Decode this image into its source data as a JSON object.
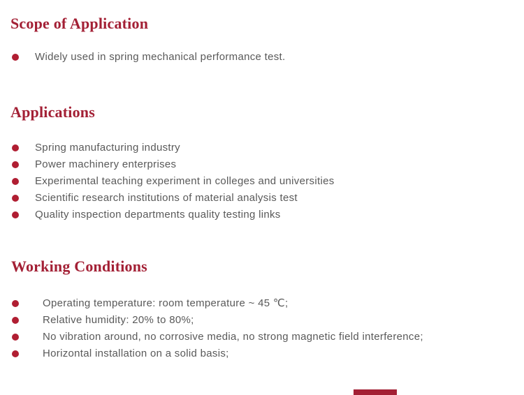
{
  "page": {
    "background_color": "#ffffff",
    "heading_color": "#A32035",
    "bullet_color": "#B01E32",
    "body_text_color": "#595959"
  },
  "sections": [
    {
      "heading": "Scope of Application",
      "items": [
        "Widely used in spring mechanical performance test."
      ]
    },
    {
      "heading": "Applications",
      "items": [
        "Spring manufacturing industry",
        "Power machinery enterprises",
        "Experimental teaching experiment in colleges and universities",
        "Scientific research institutions of material analysis test",
        "Quality inspection departments quality testing links"
      ]
    },
    {
      "heading": "Working Conditions",
      "items": [
        "Operating temperature: room temperature ~ 45 ℃;",
        "Relative humidity: 20% to 80%;",
        "No vibration around, no corrosive media, no strong magnetic field interference;",
        "Horizontal installation on a solid basis;"
      ]
    }
  ]
}
